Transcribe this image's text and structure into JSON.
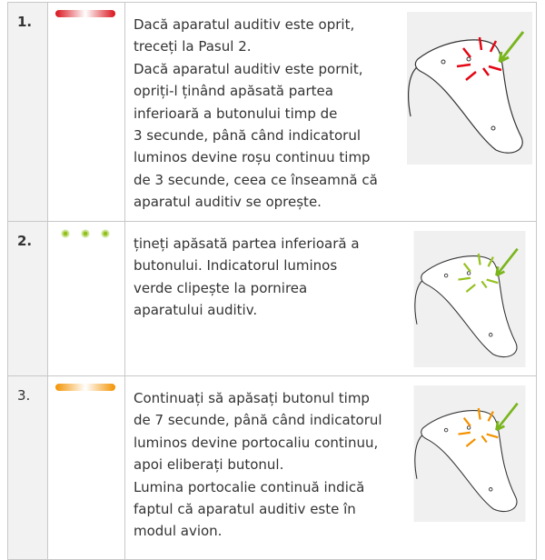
{
  "rows": [
    {
      "step": "1.",
      "lines": [
        "Dacă aparatul auditiv este oprit,",
        "treceți la Pasul 2.",
        "Dacă aparatul auditiv este pornit,",
        "opriți-l ținând apăsată partea",
        "inferioară a butonului timp de",
        "3 secunde, până când indicatorul",
        "luminos devine roșu continuu timp",
        "de 3 secunde, ceea ce înseamnă că",
        "aparatul auditiv se oprește."
      ]
    },
    {
      "step": "2.",
      "lines": [
        "țineți apăsată partea inferioară a",
        "butonului. Indicatorul luminos",
        "verde clipește la pornirea",
        "aparatului auditiv."
      ]
    },
    {
      "step": "3.",
      "lines": [
        "Continuați să apăsați butonul timp",
        "de 7 secunde, până când indicatorul",
        "luminos devine portocaliu continuu,",
        "apoi eliberați butonul.",
        "Lumina portocalie continuă indică",
        "faptul că aparatul auditiv este în",
        "modul avion."
      ]
    }
  ]
}
